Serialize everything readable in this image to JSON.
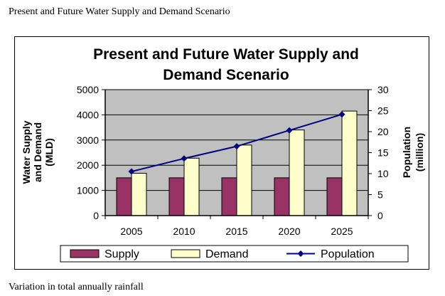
{
  "document": {
    "heading": "Present and Future Water Supply and Demand Scenario",
    "caption": "Variation in total annually rainfall"
  },
  "chart_data": {
    "type": "bar",
    "title_lines": [
      "Present and Future Water Supply and",
      "Demand Scenario"
    ],
    "categories": [
      "2005",
      "2010",
      "2015",
      "2020",
      "2025"
    ],
    "series": [
      {
        "name": "Supply",
        "type": "bar",
        "axis": "left",
        "color": "#993366",
        "values": [
          1500,
          1500,
          1500,
          1500,
          1500
        ]
      },
      {
        "name": "Demand",
        "type": "bar",
        "axis": "left",
        "color": "#FFFFCC",
        "values": [
          1680,
          2280,
          2800,
          3400,
          4150
        ]
      },
      {
        "name": "Population",
        "type": "line",
        "axis": "right",
        "color": "#000080",
        "values": [
          10.5,
          13.6,
          16.5,
          20.3,
          24.1
        ]
      }
    ],
    "y_left": {
      "label_lines": [
        "Water Supply",
        "and Demand",
        "(MLD)"
      ],
      "range": [
        0,
        5000
      ],
      "ticks": [
        "0",
        "1000",
        "2000",
        "3000",
        "4000",
        "5000"
      ]
    },
    "y_right": {
      "label_lines": [
        "Population",
        "(million)"
      ],
      "range": [
        0,
        30
      ],
      "ticks": [
        "0",
        "5",
        "10",
        "15",
        "20",
        "25",
        "30"
      ]
    },
    "plot_background": "#C0C0C0",
    "grid": true,
    "legend_position": "bottom"
  }
}
